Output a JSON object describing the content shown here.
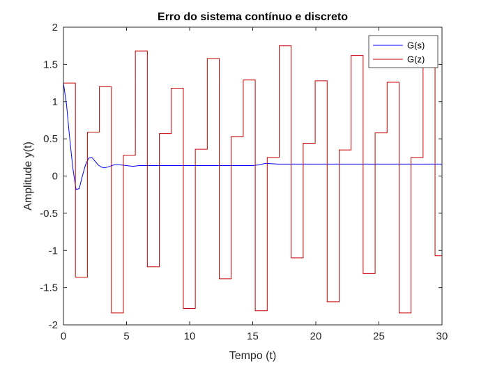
{
  "chart_data": {
    "type": "line",
    "title": "Erro do sistema contínuo e discreto",
    "xlabel": "Tempo (t)",
    "ylabel": "Amplitude y(t)",
    "xlim": [
      0,
      30
    ],
    "ylim": [
      -2,
      2
    ],
    "xticks": [
      0,
      5,
      10,
      15,
      20,
      25,
      30
    ],
    "yticks": [
      -2,
      -1.5,
      -1,
      -0.5,
      0,
      0.5,
      1,
      1.5,
      2
    ],
    "grid": false,
    "legend_position": "top-right",
    "series": [
      {
        "name": "G(s)",
        "color": "#0000ff",
        "style": "line",
        "x": [
          0,
          0.25,
          0.5,
          0.75,
          1.0,
          1.25,
          1.5,
          1.75,
          2.0,
          2.25,
          2.5,
          2.75,
          3.0,
          3.25,
          3.5,
          4.0,
          4.5,
          5.0,
          5.5,
          6.0,
          7.0,
          8.0,
          9.0,
          10.0,
          11.0,
          12.0,
          13.0,
          14.0,
          15.0,
          15.5,
          16.0,
          17.0,
          18.0,
          19.0,
          20.0,
          22.0,
          24.0,
          26.0,
          28.0,
          30.0
        ],
        "y": [
          1.25,
          0.95,
          0.5,
          0.1,
          -0.18,
          -0.17,
          0.0,
          0.15,
          0.24,
          0.25,
          0.2,
          0.15,
          0.12,
          0.11,
          0.12,
          0.15,
          0.15,
          0.14,
          0.13,
          0.14,
          0.14,
          0.14,
          0.14,
          0.14,
          0.14,
          0.14,
          0.14,
          0.14,
          0.14,
          0.15,
          0.17,
          0.16,
          0.16,
          0.16,
          0.16,
          0.16,
          0.16,
          0.16,
          0.16,
          0.16
        ]
      },
      {
        "name": "G(z)",
        "color": "#cc0000",
        "style": "stairs",
        "x": [
          0,
          0.95,
          1.9,
          2.85,
          3.8,
          4.75,
          5.7,
          6.65,
          7.6,
          8.55,
          9.5,
          10.45,
          11.4,
          12.35,
          13.3,
          14.25,
          15.2,
          16.15,
          17.1,
          18.05,
          19.0,
          19.95,
          20.9,
          21.85,
          22.8,
          23.75,
          24.7,
          25.65,
          26.6,
          27.55,
          28.5,
          29.45,
          30.0
        ],
        "y": [
          1.25,
          -1.36,
          0.59,
          1.2,
          -1.84,
          0.28,
          1.68,
          -1.22,
          0.57,
          1.18,
          -1.78,
          0.36,
          1.58,
          -1.38,
          0.53,
          1.29,
          -1.81,
          0.25,
          1.75,
          -1.1,
          0.44,
          1.28,
          -1.69,
          0.35,
          1.62,
          -1.31,
          0.58,
          1.26,
          -1.84,
          0.25,
          1.78,
          -1.07,
          -1.07
        ]
      }
    ]
  }
}
